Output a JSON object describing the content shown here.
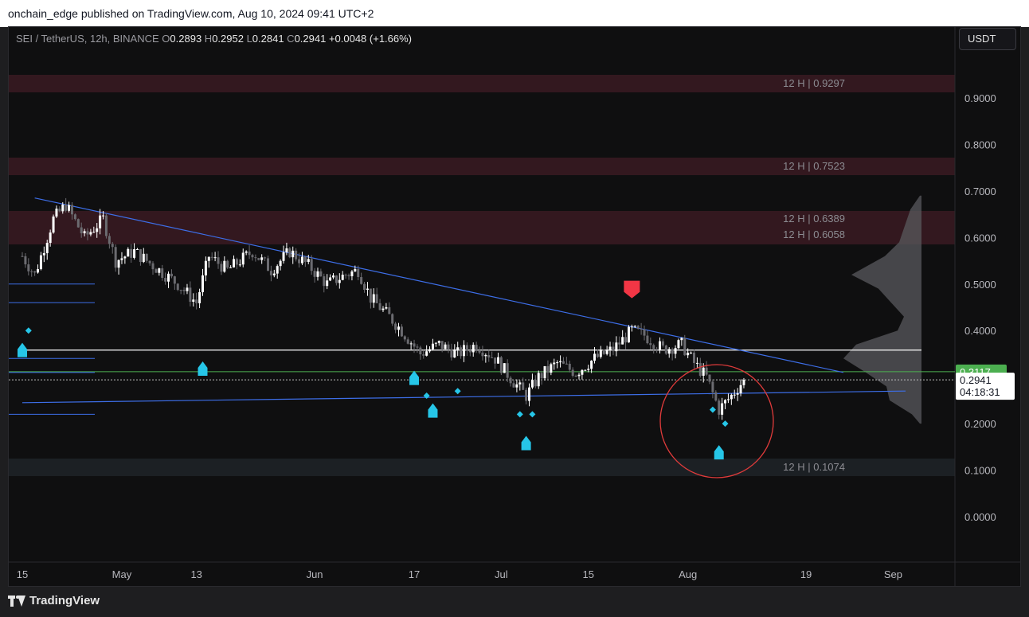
{
  "header": {
    "published": "onchain_edge published on TradingView.com, Aug 10, 2024 09:41 UTC+2"
  },
  "legend": {
    "symbol": "SEI / TetherUS, 12h, BINANCE",
    "o_label": "O",
    "o_value": "0.2893",
    "h_label": "H",
    "h_value": "0.2952",
    "l_label": "L",
    "l_value": "0.2841",
    "c_label": "C",
    "c_value": "0.2941",
    "change": "+0.0048 (+1.66%)"
  },
  "toolbar": {
    "currency": "USDT"
  },
  "footer": {
    "brand": "TradingView"
  },
  "colors": {
    "background": "#0f0f10",
    "candle_up": "#ffffff",
    "candle_down": "#6b6b70",
    "trendline": "#3d6ee8",
    "support": "#ffffff",
    "green_level": "#4caf50",
    "zone_red": "#3a1a22",
    "zone_gray": "#1f2328",
    "signal_buy": "#26c6e8",
    "signal_sell": "#f23645",
    "circle": "#e03b3b",
    "volume_profile": "#5a5a5e"
  },
  "chart_data": {
    "type": "candlestick",
    "title": "",
    "y_axis": {
      "ticks": [
        "0.9000",
        "0.8000",
        "0.7000",
        "0.6000",
        "0.5000",
        "0.4000",
        "0.2000",
        "0.1000",
        "0.0000"
      ],
      "range": [
        -0.1,
        1.03
      ]
    },
    "x_axis": {
      "ticks": [
        "15",
        "May",
        "13",
        "Jun",
        "17",
        "Jul",
        "15",
        "Aug",
        "19",
        "Sep"
      ]
    },
    "zones": [
      {
        "label": "12 H | 0.9297",
        "level": 0.9297,
        "color": "red"
      },
      {
        "label": "12 H | 0.7523",
        "level": 0.7523,
        "color": "red"
      },
      {
        "label": "12 H | 0.6389",
        "level": 0.6389,
        "color": "red"
      },
      {
        "label": "12 H | 0.6058",
        "level": 0.6058,
        "color": "red"
      },
      {
        "label": "12 H | 0.1074",
        "level": 0.1074,
        "color": "gray"
      }
    ],
    "price_labels": {
      "green_level": "0.3117",
      "last_price": "0.2941",
      "countdown": "04:18:31"
    },
    "levels": {
      "support": 0.358,
      "green": 0.3117,
      "last": 0.2941
    },
    "trendlines": [
      {
        "from": [
          "Apr 17",
          0.685
        ],
        "to": [
          "Aug 25",
          0.31
        ]
      },
      {
        "from": [
          "Apr 15",
          0.245
        ],
        "to": [
          "Sep 4",
          0.27
        ]
      }
    ],
    "close_path": [
      [
        "Apr 15",
        0.56
      ],
      [
        "Apr 17",
        0.52
      ],
      [
        "Apr 20",
        0.64
      ],
      [
        "Apr 22",
        0.67
      ],
      [
        "Apr 25",
        0.6
      ],
      [
        "Apr 28",
        0.64
      ],
      [
        "Apr 30",
        0.55
      ],
      [
        "May 3",
        0.57
      ],
      [
        "May 6",
        0.54
      ],
      [
        "May 10",
        0.5
      ],
      [
        "May 13",
        0.46
      ],
      [
        "May 15",
        0.56
      ],
      [
        "May 18",
        0.53
      ],
      [
        "May 22",
        0.57
      ],
      [
        "May 25",
        0.53
      ],
      [
        "May 28",
        0.57
      ],
      [
        "May 31",
        0.54
      ],
      [
        "Jun 3",
        0.5
      ],
      [
        "Jun 6",
        0.52
      ],
      [
        "Jun 8",
        0.53
      ],
      [
        "Jun 10",
        0.47
      ],
      [
        "Jun 13",
        0.43
      ],
      [
        "Jun 15",
        0.4
      ],
      [
        "Jun 18",
        0.35
      ],
      [
        "Jun 21",
        0.37
      ],
      [
        "Jun 24",
        0.35
      ],
      [
        "Jun 27",
        0.37
      ],
      [
        "Jun 30",
        0.34
      ],
      [
        "Jul 3",
        0.29
      ],
      [
        "Jul 5",
        0.26
      ],
      [
        "Jul 7",
        0.3
      ],
      [
        "Jul 10",
        0.33
      ],
      [
        "Jul 13",
        0.31
      ],
      [
        "Jul 16",
        0.34
      ],
      [
        "Jul 19",
        0.36
      ],
      [
        "Jul 22",
        0.4
      ],
      [
        "Jul 24",
        0.39
      ],
      [
        "Jul 27",
        0.36
      ],
      [
        "Jul 30",
        0.37
      ],
      [
        "Aug 1",
        0.33
      ],
      [
        "Aug 3",
        0.3
      ],
      [
        "Aug 5",
        0.23
      ],
      [
        "Aug 7",
        0.26
      ],
      [
        "Aug 9",
        0.2941
      ]
    ],
    "signals_buy": [
      "Apr 15",
      "May 14",
      "Jun 17",
      "Jun 20",
      "Jul 5",
      "Aug 5"
    ],
    "signals_sell": [
      "Jul 22"
    ]
  }
}
